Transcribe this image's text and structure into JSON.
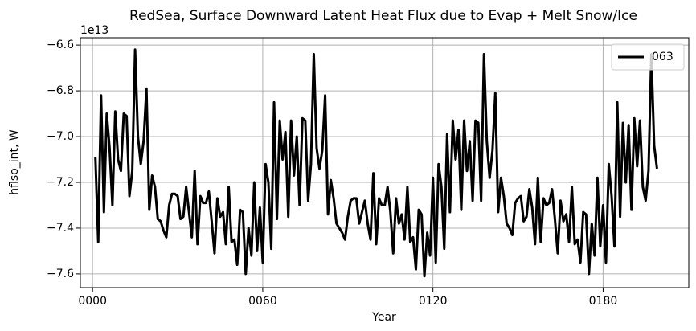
{
  "chart_data": {
    "type": "line",
    "title": "RedSea, Surface Downward Latent Heat Flux due to Evap + Melt Snow/Ice",
    "x_label": "Year",
    "y_label": "hflso_int, W",
    "y_offset_label": "1e13",
    "xlim": [
      -4.3,
      210.2
    ],
    "ylim": [
      -7.66,
      -6.568
    ],
    "xticks": [
      {
        "value": 0,
        "label": "0000"
      },
      {
        "value": 60,
        "label": "0060"
      },
      {
        "value": 120,
        "label": "0120"
      },
      {
        "value": 180,
        "label": "0180"
      }
    ],
    "yticks": [
      {
        "value": -7.6,
        "label": "−7.6"
      },
      {
        "value": -7.4,
        "label": "−7.4"
      },
      {
        "value": -7.2,
        "label": "−7.2"
      },
      {
        "value": -7.0,
        "label": "−7.0"
      },
      {
        "value": -6.8,
        "label": "−6.8"
      },
      {
        "value": -6.6,
        "label": "−6.6"
      }
    ],
    "grid": true,
    "legend": "upper right",
    "x": [
      1,
      2,
      3,
      4,
      5,
      6,
      7,
      8,
      9,
      10,
      11,
      12,
      13,
      14,
      15,
      16,
      17,
      18,
      19,
      20,
      21,
      22,
      23,
      24,
      25,
      26,
      27,
      28,
      29,
      30,
      31,
      32,
      33,
      34,
      35,
      36,
      37,
      38,
      39,
      40,
      41,
      42,
      43,
      44,
      45,
      46,
      47,
      48,
      49,
      50,
      51,
      52,
      53,
      54,
      55,
      56,
      57,
      58,
      59,
      60,
      61,
      62,
      63,
      64,
      65,
      66,
      67,
      68,
      69,
      70,
      71,
      72,
      73,
      74,
      75,
      76,
      77,
      78,
      79,
      80,
      81,
      82,
      83,
      84,
      85,
      86,
      87,
      88,
      89,
      90,
      91,
      92,
      93,
      94,
      95,
      96,
      97,
      98,
      99,
      100,
      101,
      102,
      103,
      104,
      105,
      106,
      107,
      108,
      109,
      110,
      111,
      112,
      113,
      114,
      115,
      116,
      117,
      118,
      119,
      120,
      121,
      122,
      123,
      124,
      125,
      126,
      127,
      128,
      129,
      130,
      131,
      132,
      133,
      134,
      135,
      136,
      137,
      138,
      139,
      140,
      141,
      142,
      143,
      144,
      145,
      146,
      147,
      148,
      149,
      150,
      151,
      152,
      153,
      154,
      155,
      156,
      157,
      158,
      159,
      160,
      161,
      162,
      163,
      164,
      165,
      166,
      167,
      168,
      169,
      170,
      171,
      172,
      173,
      174,
      175,
      176,
      177,
      178,
      179,
      180,
      181,
      182,
      183,
      184,
      185,
      186,
      187,
      188,
      189,
      190,
      191,
      192,
      193,
      194,
      195,
      196,
      197,
      198,
      199
    ],
    "series": [
      {
        "name": "063",
        "color": "#000000",
        "values": [
          -7.09,
          -7.46,
          -6.82,
          -7.33,
          -6.9,
          -7.05,
          -7.3,
          -6.89,
          -7.1,
          -7.15,
          -6.9,
          -6.91,
          -7.26,
          -7.15,
          -6.62,
          -7.0,
          -7.12,
          -7.02,
          -6.79,
          -7.32,
          -7.17,
          -7.22,
          -7.36,
          -7.37,
          -7.41,
          -7.44,
          -7.3,
          -7.25,
          -7.25,
          -7.26,
          -7.36,
          -7.35,
          -7.22,
          -7.33,
          -7.44,
          -7.15,
          -7.47,
          -7.26,
          -7.29,
          -7.29,
          -7.24,
          -7.37,
          -7.51,
          -7.27,
          -7.35,
          -7.33,
          -7.47,
          -7.22,
          -7.46,
          -7.45,
          -7.56,
          -7.32,
          -7.33,
          -7.6,
          -7.4,
          -7.52,
          -7.2,
          -7.5,
          -7.31,
          -7.55,
          -7.12,
          -7.2,
          -7.49,
          -6.85,
          -7.36,
          -6.93,
          -7.1,
          -6.98,
          -7.35,
          -6.93,
          -7.17,
          -7.0,
          -7.3,
          -6.92,
          -6.93,
          -7.28,
          -7.12,
          -6.64,
          -7.05,
          -7.14,
          -7.06,
          -6.82,
          -7.34,
          -7.19,
          -7.27,
          -7.38,
          -7.4,
          -7.42,
          -7.45,
          -7.35,
          -7.28,
          -7.27,
          -7.27,
          -7.38,
          -7.33,
          -7.28,
          -7.38,
          -7.45,
          -7.16,
          -7.47,
          -7.27,
          -7.3,
          -7.3,
          -7.22,
          -7.33,
          -7.51,
          -7.27,
          -7.38,
          -7.34,
          -7.45,
          -7.22,
          -7.46,
          -7.44,
          -7.58,
          -7.32,
          -7.34,
          -7.61,
          -7.42,
          -7.52,
          -7.18,
          -7.55,
          -7.12,
          -7.22,
          -7.49,
          -6.99,
          -7.33,
          -6.93,
          -7.1,
          -6.97,
          -7.32,
          -6.93,
          -7.15,
          -7.02,
          -7.28,
          -6.93,
          -6.94,
          -7.28,
          -6.64,
          -7.02,
          -7.18,
          -7.06,
          -6.81,
          -7.33,
          -7.18,
          -7.26,
          -7.38,
          -7.4,
          -7.43,
          -7.29,
          -7.27,
          -7.26,
          -7.37,
          -7.35,
          -7.23,
          -7.31,
          -7.47,
          -7.18,
          -7.46,
          -7.27,
          -7.3,
          -7.29,
          -7.23,
          -7.36,
          -7.51,
          -7.28,
          -7.37,
          -7.34,
          -7.46,
          -7.22,
          -7.47,
          -7.45,
          -7.55,
          -7.33,
          -7.34,
          -7.6,
          -7.38,
          -7.52,
          -7.18,
          -7.48,
          -7.3,
          -7.55,
          -7.12,
          -7.26,
          -7.48,
          -6.85,
          -7.35,
          -6.94,
          -7.2,
          -6.95,
          -7.32,
          -6.92,
          -7.13,
          -6.93,
          -7.22,
          -7.28,
          -7.15,
          -6.64,
          -7.04,
          -7.14
        ]
      }
    ]
  }
}
